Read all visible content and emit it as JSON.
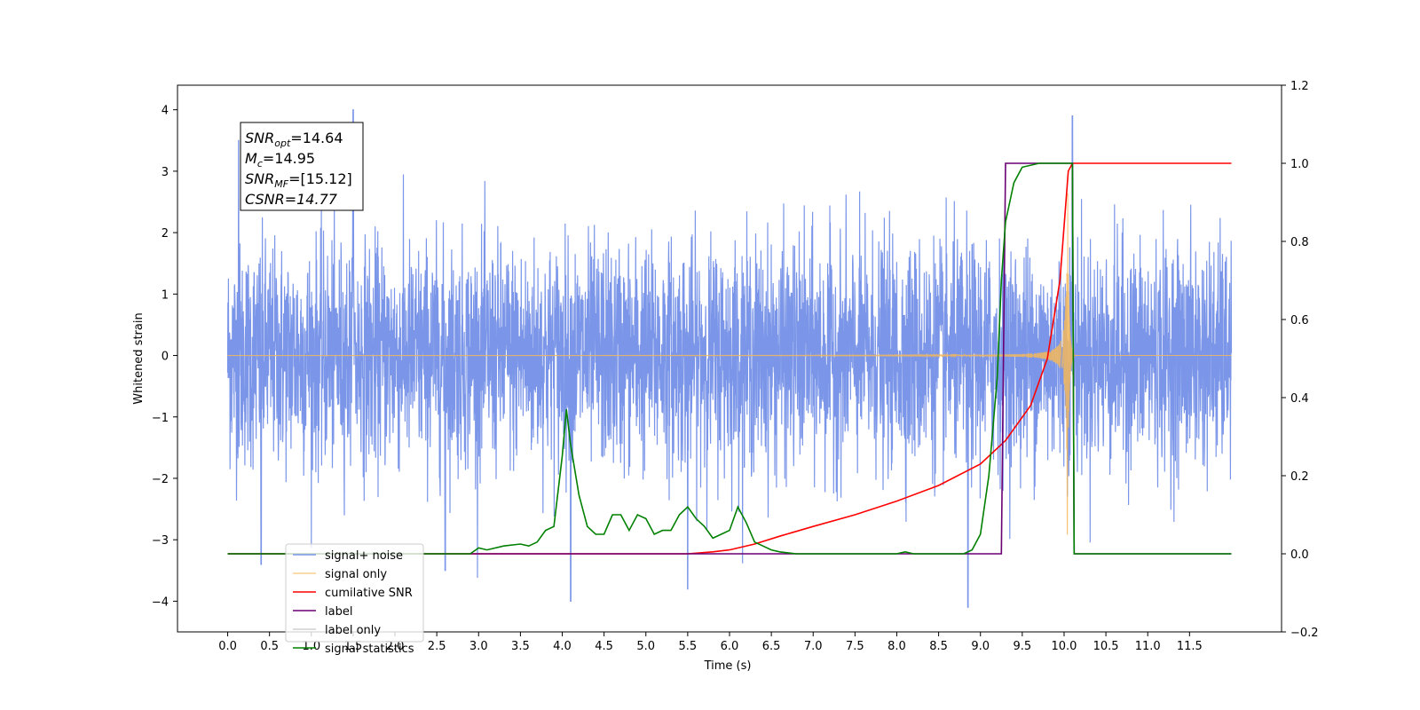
{
  "chart_data": {
    "type": "line",
    "xlabel": "Time (s)",
    "ylabel": "Whitened strain",
    "x_ticks": [
      "0.0",
      "0.5",
      "1.0",
      "1.5",
      "2.0",
      "2.5",
      "3.0",
      "3.5",
      "4.0",
      "4.5",
      "5.0",
      "5.5",
      "6.0",
      "6.5",
      "7.0",
      "7.5",
      "8.0",
      "8.5",
      "9.0",
      "9.5",
      "10.0",
      "10.5",
      "11.0",
      "11.5"
    ],
    "xlim": [
      -0.6,
      12.6
    ],
    "ylim_left": [
      -4.5,
      4.4
    ],
    "y_ticks_left": [
      "4",
      "3",
      "2",
      "1",
      "0",
      "−1",
      "−2",
      "−3",
      "−4"
    ],
    "ylim_right": [
      -0.2,
      1.2
    ],
    "y_ticks_right": [
      "1.2",
      "1.0",
      "0.8",
      "0.6",
      "0.4",
      "0.2",
      "0.0",
      "−0.2"
    ],
    "annotation": {
      "snr_opt": "=14.64",
      "mc": "=14.95",
      "snr_mf": "=[15.12]",
      "csnr": "CSNR=14.77"
    },
    "legend_position": "lower-left",
    "series": [
      {
        "name": "signal+ noise",
        "axis": "left",
        "color": "#7b96e8",
        "description_values": {
          "x_range": [
            0.0,
            12.0
          ],
          "noise_std": 0.9,
          "spikes": [
            [
              0.13,
              3.5
            ],
            [
              1.5,
              4.0
            ],
            [
              10.1,
              3.9
            ],
            [
              4.1,
              -4.0
            ],
            [
              8.85,
              -4.1
            ],
            [
              0.4,
              -3.4
            ],
            [
              5.5,
              -3.8
            ],
            [
              2.6,
              -3.5
            ]
          ]
        }
      },
      {
        "name": "signal only",
        "axis": "left",
        "color": "#f5b85a",
        "chirp": {
          "start": 0.0,
          "merger": 10.05,
          "end": 12.0,
          "max_amplitude": 3.0
        }
      },
      {
        "name": "cumilative SNR",
        "axis": "right",
        "color": "#ff0000",
        "x": [
          0.0,
          5.5,
          5.8,
          6.0,
          6.3,
          6.6,
          7.0,
          7.5,
          8.0,
          8.5,
          9.0,
          9.3,
          9.6,
          9.8,
          9.95,
          10.05,
          10.1,
          12.0
        ],
        "y": [
          0.0,
          0.0,
          0.005,
          0.01,
          0.025,
          0.045,
          0.07,
          0.1,
          0.135,
          0.175,
          0.23,
          0.29,
          0.38,
          0.5,
          0.7,
          0.98,
          1.0,
          1.0
        ]
      },
      {
        "name": "label",
        "axis": "right",
        "color": "#6a0073",
        "x": [
          0.0,
          9.25,
          9.3,
          10.1,
          10.12,
          12.0
        ],
        "y": [
          0.0,
          0.0,
          1.0,
          1.0,
          0.0,
          0.0
        ]
      },
      {
        "name": "label only",
        "axis": "right",
        "color": "#cfcfcf",
        "x": [],
        "y": []
      },
      {
        "name": "signal statistics",
        "axis": "right",
        "color": "#008000",
        "x": [
          0.0,
          2.9,
          3.0,
          3.1,
          3.3,
          3.5,
          3.6,
          3.7,
          3.8,
          3.9,
          4.0,
          4.05,
          4.1,
          4.2,
          4.3,
          4.4,
          4.5,
          4.6,
          4.7,
          4.8,
          4.9,
          5.0,
          5.1,
          5.2,
          5.3,
          5.4,
          5.5,
          5.6,
          5.7,
          5.8,
          5.9,
          6.0,
          6.1,
          6.2,
          6.3,
          6.4,
          6.5,
          6.6,
          6.8,
          7.0,
          8.0,
          8.1,
          8.2,
          8.8,
          8.9,
          9.0,
          9.1,
          9.2,
          9.25,
          9.3,
          9.4,
          9.5,
          9.7,
          10.0,
          10.1,
          10.12,
          12.0
        ],
        "y": [
          0.0,
          0.0,
          0.015,
          0.01,
          0.02,
          0.025,
          0.02,
          0.03,
          0.06,
          0.07,
          0.25,
          0.37,
          0.28,
          0.15,
          0.07,
          0.05,
          0.05,
          0.1,
          0.1,
          0.06,
          0.1,
          0.09,
          0.05,
          0.06,
          0.06,
          0.1,
          0.12,
          0.09,
          0.07,
          0.04,
          0.05,
          0.06,
          0.12,
          0.08,
          0.03,
          0.02,
          0.01,
          0.005,
          0.0,
          0.0,
          0.0,
          0.005,
          0.0,
          0.0,
          0.01,
          0.05,
          0.2,
          0.45,
          0.7,
          0.85,
          0.95,
          0.99,
          1.0,
          1.0,
          1.0,
          0.0,
          0.0
        ]
      }
    ]
  }
}
